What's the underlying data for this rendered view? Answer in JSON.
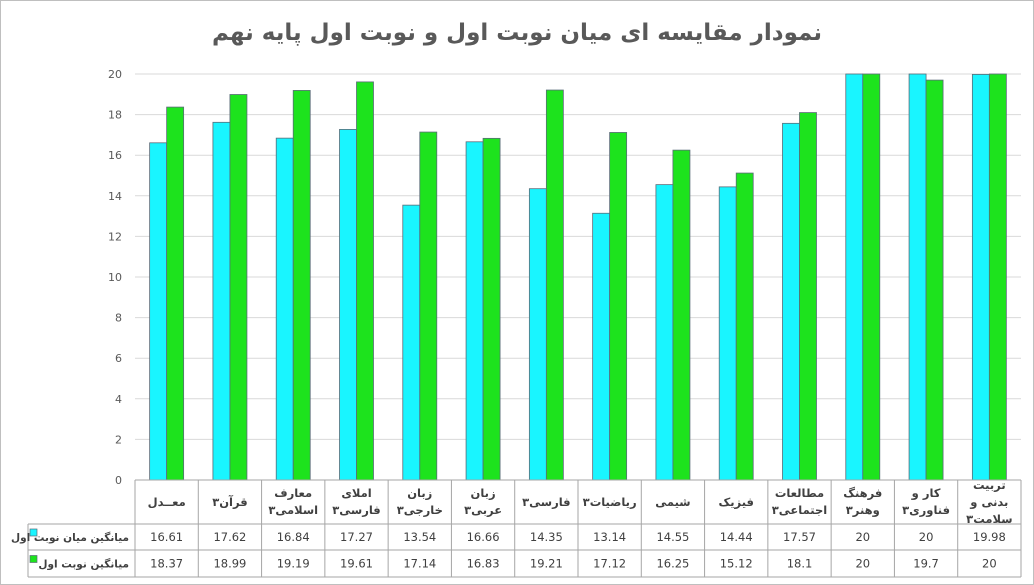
{
  "chart_data": {
    "type": "bar",
    "title": "نمودار مقایسه ای میان نوبت اول و نوبت اول پایه نهم",
    "xlabel": "",
    "ylabel": "",
    "ylim": [
      0,
      20
    ],
    "yticks": [
      "0",
      "2",
      "4",
      "6",
      "8",
      "10",
      "12",
      "14",
      "16",
      "18",
      "20"
    ],
    "grid": true,
    "legend_placement": "data-table-left",
    "categories": [
      "معــدل",
      "قرآن۳",
      "معارف اسلامی۳",
      "املای فارسی۳",
      "زبان خارجی۳",
      "زبان عربی۳",
      "فارسی۳",
      "ریاضیات۳",
      "شیمی",
      "فیزیک",
      "مطالعات اجتماعی۳",
      "فرهنگ وهنر۳",
      "کار و فناوری۳",
      "تربیت بدنی و سلامت۳"
    ],
    "series": [
      {
        "name": "میانگین میان نوبت اول",
        "color": "#19f5ff",
        "values": [
          16.61,
          17.62,
          16.84,
          17.27,
          13.54,
          16.66,
          14.35,
          13.14,
          14.55,
          14.44,
          17.57,
          20,
          20,
          19.98
        ],
        "labels": [
          "16.61",
          "17.62",
          "16.84",
          "17.27",
          "13.54",
          "16.66",
          "14.35",
          "13.14",
          "14.55",
          "14.44",
          "17.57",
          "20",
          "20",
          "19.98"
        ]
      },
      {
        "name": "میانگین نوبت اول",
        "color": "#1de31d",
        "values": [
          18.37,
          18.99,
          19.19,
          19.61,
          17.14,
          16.83,
          19.21,
          17.12,
          16.25,
          15.12,
          18.1,
          20,
          19.7,
          20
        ],
        "labels": [
          "18.37",
          "18.99",
          "19.19",
          "19.61",
          "17.14",
          "16.83",
          "19.21",
          "17.12",
          "16.25",
          "15.12",
          "18.1",
          "20",
          "19.7",
          "20"
        ]
      }
    ]
  }
}
